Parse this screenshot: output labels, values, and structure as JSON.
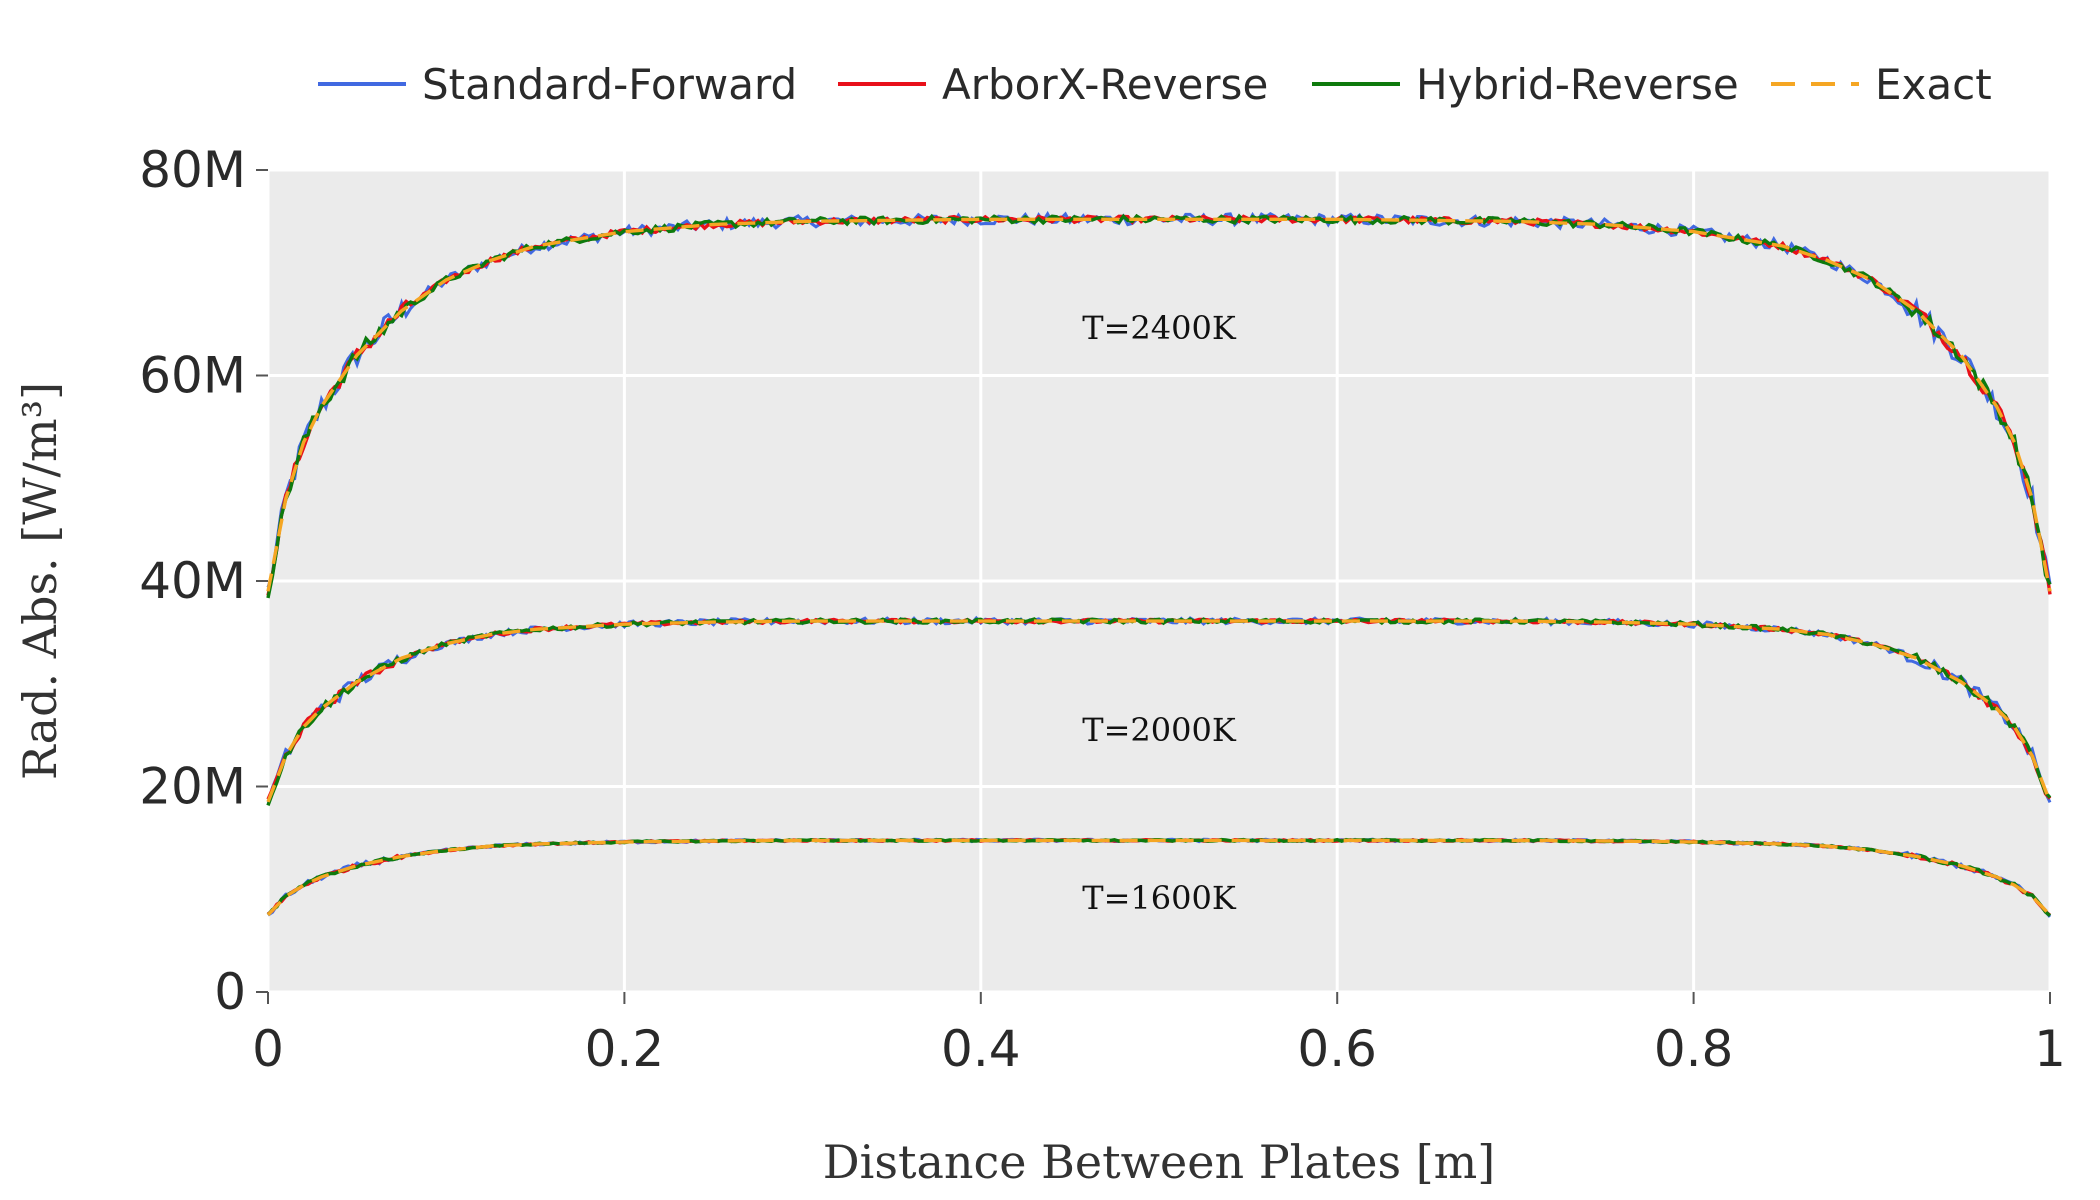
{
  "chart_data": {
    "type": "line",
    "title": "",
    "xlabel": "Distance Between Plates [m]",
    "ylabel": "Rad. Abs. [W/m³]",
    "xlim": [
      0,
      1
    ],
    "ylim": [
      0,
      80000000
    ],
    "x_ticks": [
      {
        "value": 0,
        "label": "0"
      },
      {
        "value": 0.2,
        "label": "0.2"
      },
      {
        "value": 0.4,
        "label": "0.4"
      },
      {
        "value": 0.6,
        "label": "0.6"
      },
      {
        "value": 0.8,
        "label": "0.8"
      },
      {
        "value": 1,
        "label": "1"
      }
    ],
    "y_ticks": [
      {
        "value": 0,
        "label": "0"
      },
      {
        "value": 20000000,
        "label": "20M"
      },
      {
        "value": 40000000,
        "label": "40M"
      },
      {
        "value": 60000000,
        "label": "60M"
      },
      {
        "value": 80000000,
        "label": "80M"
      }
    ],
    "grid": true,
    "plot_background": "#ebebeb",
    "legend_position": "top",
    "legend": [
      {
        "name": "Standard-Forward",
        "color": "#4169e1",
        "dash": "solid"
      },
      {
        "name": "ArborX-Reverse",
        "color": "#e8101a",
        "dash": "solid"
      },
      {
        "name": "Hybrid-Reverse",
        "color": "#0e7a0d",
        "dash": "solid"
      },
      {
        "name": "Exact",
        "color": "#f5a623",
        "dash": "dashed"
      }
    ],
    "x": [
      0,
      0.01,
      0.02,
      0.03,
      0.05,
      0.075,
      0.1,
      0.125,
      0.15,
      0.2,
      0.25,
      0.3,
      0.35,
      0.4,
      0.45,
      0.5,
      0.55,
      0.6,
      0.65,
      0.7,
      0.75,
      0.8,
      0.85,
      0.875,
      0.9,
      0.925,
      0.95,
      0.97,
      0.98,
      0.99,
      1
    ],
    "groups": [
      {
        "label": "T=2400K",
        "exact": [
          39,
          48,
          53.5,
          57,
          62,
          66.3,
          69.3,
          71.2,
          72.6,
          74,
          74.7,
          75,
          75.1,
          75.2,
          75.2,
          75.2,
          75.2,
          75.2,
          75.1,
          75,
          74.7,
          74,
          72.6,
          71.2,
          69.3,
          66.3,
          62,
          57,
          53.5,
          48,
          39
        ],
        "noise": {
          "Standard-Forward": 0.55,
          "ArborX-Reverse": 0.3,
          "Hybrid-Reverse": 0.35
        }
      },
      {
        "label": "T=2000K",
        "exact": [
          18.5,
          23,
          25.8,
          27.6,
          30.2,
          32.5,
          33.9,
          34.8,
          35.3,
          35.8,
          36,
          36.1,
          36.1,
          36.1,
          36.1,
          36.1,
          36.1,
          36.1,
          36.1,
          36.1,
          36,
          35.8,
          35.3,
          34.8,
          33.9,
          32.5,
          30.2,
          27.6,
          25.8,
          23,
          18.5
        ],
        "noise": {
          "Standard-Forward": 0.3,
          "ArborX-Reverse": 0.18,
          "Hybrid-Reverse": 0.2
        }
      },
      {
        "label": "T=1600K",
        "exact": [
          7.5,
          9.3,
          10.4,
          11.2,
          12.3,
          13.2,
          13.8,
          14.2,
          14.4,
          14.6,
          14.7,
          14.75,
          14.75,
          14.75,
          14.75,
          14.75,
          14.75,
          14.75,
          14.75,
          14.75,
          14.7,
          14.6,
          14.4,
          14.2,
          13.8,
          13.2,
          12.3,
          11.2,
          10.4,
          9.3,
          7.5
        ],
        "noise": {
          "Standard-Forward": 0.12,
          "ArborX-Reverse": 0.08,
          "Hybrid-Reverse": 0.08
        }
      }
    ],
    "value_unit_multiplier": 1000000
  }
}
